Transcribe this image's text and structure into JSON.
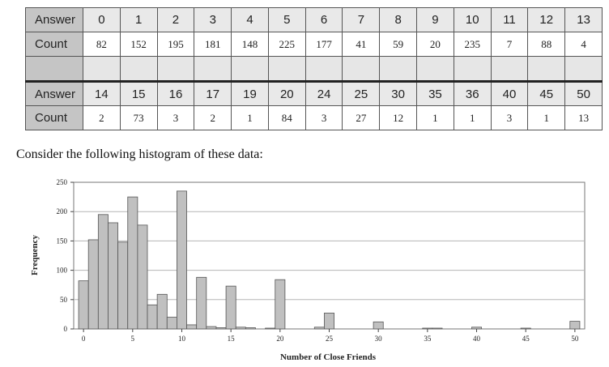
{
  "table": {
    "row_header_answer": "Answer",
    "row_header_count": "Count",
    "rows": [
      {
        "answers": [
          "0",
          "1",
          "2",
          "3",
          "4",
          "5",
          "6",
          "7",
          "8",
          "9",
          "10",
          "11",
          "12",
          "13"
        ],
        "counts": [
          "82",
          "152",
          "195",
          "181",
          "148",
          "225",
          "177",
          "41",
          "59",
          "20",
          "235",
          "7",
          "88",
          "4"
        ]
      },
      {
        "answers": [
          "14",
          "15",
          "16",
          "17",
          "19",
          "20",
          "24",
          "25",
          "30",
          "35",
          "36",
          "40",
          "45",
          "50"
        ],
        "counts": [
          "2",
          "73",
          "3",
          "2",
          "1",
          "84",
          "3",
          "27",
          "12",
          "1",
          "1",
          "3",
          "1",
          "13"
        ]
      }
    ]
  },
  "caption": "Consider the following histogram of these data:",
  "chart_data": {
    "type": "bar",
    "title": "",
    "xlabel": "Number of Close Friends",
    "ylabel": "Frequency",
    "xlim": [
      -1,
      51
    ],
    "ylim": [
      0,
      250
    ],
    "xticks": [
      0,
      5,
      10,
      15,
      20,
      25,
      30,
      35,
      40,
      45,
      50
    ],
    "yticks": [
      0,
      50,
      100,
      150,
      200,
      250
    ],
    "grid": "horizontal",
    "bar_color": "#c0c0c0",
    "x": [
      0,
      1,
      2,
      3,
      4,
      5,
      6,
      7,
      8,
      9,
      10,
      11,
      12,
      13,
      14,
      15,
      16,
      17,
      19,
      20,
      24,
      25,
      30,
      35,
      36,
      40,
      45,
      50
    ],
    "values": [
      82,
      152,
      195,
      181,
      148,
      225,
      177,
      41,
      59,
      20,
      235,
      7,
      88,
      4,
      2,
      73,
      3,
      2,
      1,
      84,
      3,
      27,
      12,
      1,
      1,
      3,
      1,
      13
    ]
  }
}
